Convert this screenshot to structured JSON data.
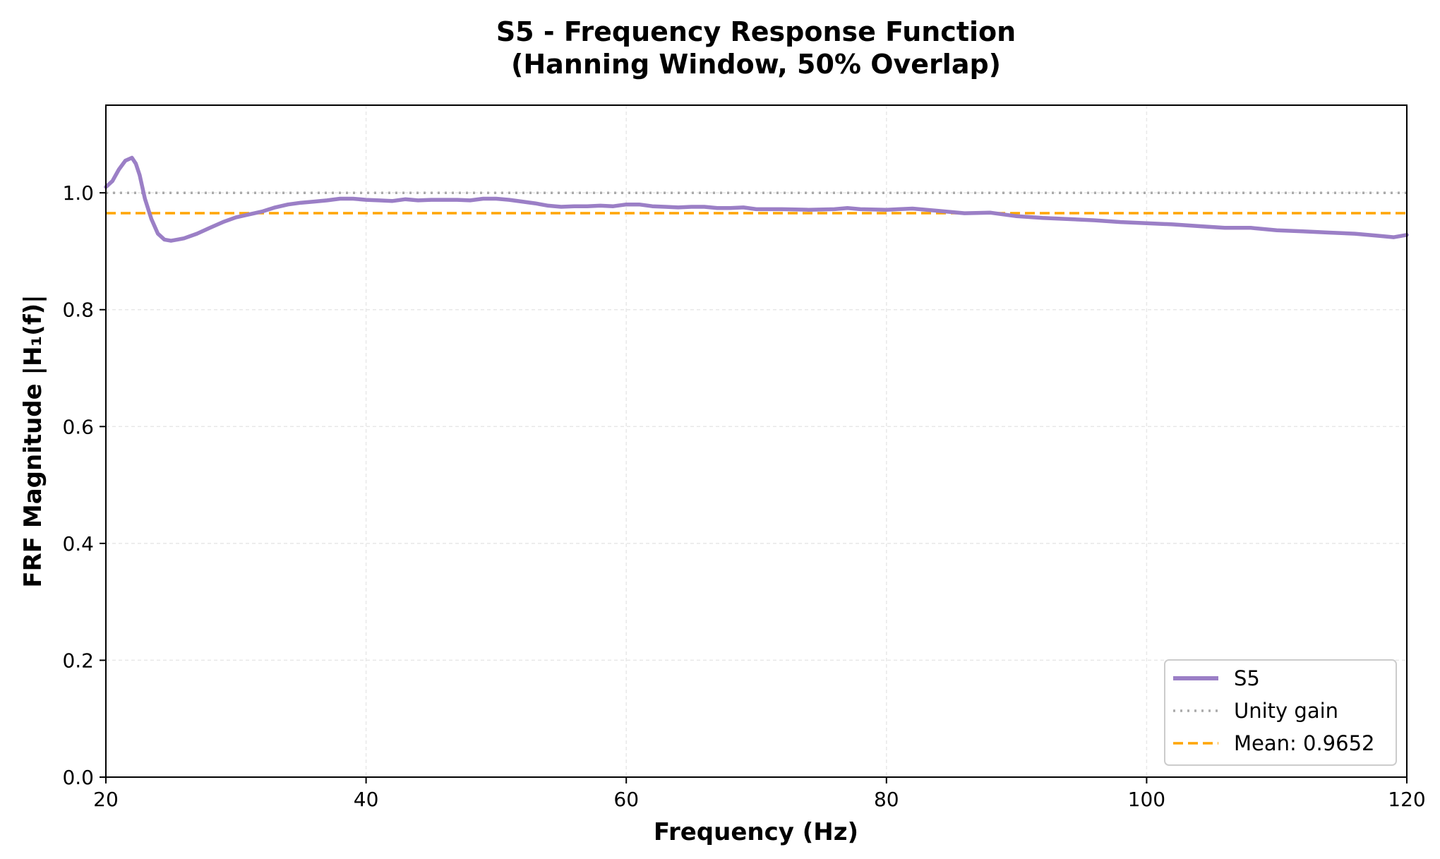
{
  "chart_data": {
    "type": "line",
    "title": "S5 - Frequency Response Function",
    "subtitle": "(Hanning Window, 50% Overlap)",
    "xlabel": "Frequency (Hz)",
    "ylabel": "FRF Magnitude |H₁(f)|",
    "xlim": [
      20,
      120
    ],
    "ylim": [
      0,
      1.15
    ],
    "xticks": [
      20,
      40,
      60,
      80,
      100,
      120
    ],
    "xtick_labels": [
      "20",
      "40",
      "60",
      "80",
      "100",
      "120"
    ],
    "yticks": [
      0,
      0.2,
      0.4,
      0.6,
      0.8,
      1.0
    ],
    "ytick_labels": [
      "0.0",
      "0.2",
      "0.4",
      "0.6",
      "0.8",
      "1.0"
    ],
    "grid": true,
    "legend_position": "lower-right",
    "series": [
      {
        "name": "S5",
        "color": "#9b7fc6",
        "style": "solid",
        "x": [
          20,
          20.5,
          21,
          21.5,
          22,
          22.3,
          22.6,
          23,
          23.5,
          24,
          24.5,
          25,
          25.5,
          26,
          27,
          28,
          29,
          30,
          31,
          32,
          33,
          34,
          35,
          36,
          37,
          38,
          39,
          40,
          41,
          42,
          43,
          44,
          45,
          46,
          47,
          48,
          49,
          50,
          51,
          52,
          53,
          54,
          55,
          56,
          57,
          58,
          59,
          60,
          61,
          62,
          63,
          64,
          65,
          66,
          67,
          68,
          69,
          70,
          72,
          74,
          76,
          77,
          78,
          80,
          82,
          84,
          86,
          88,
          90,
          92,
          94,
          96,
          98,
          100,
          102,
          104,
          106,
          108,
          110,
          112,
          114,
          116,
          118,
          119,
          120
        ],
        "values": [
          1.01,
          1.02,
          1.04,
          1.055,
          1.06,
          1.05,
          1.03,
          0.99,
          0.955,
          0.93,
          0.92,
          0.918,
          0.92,
          0.922,
          0.93,
          0.94,
          0.95,
          0.958,
          0.963,
          0.968,
          0.975,
          0.98,
          0.983,
          0.985,
          0.987,
          0.99,
          0.99,
          0.988,
          0.987,
          0.986,
          0.989,
          0.987,
          0.988,
          0.988,
          0.988,
          0.987,
          0.99,
          0.99,
          0.988,
          0.985,
          0.982,
          0.978,
          0.976,
          0.977,
          0.977,
          0.978,
          0.977,
          0.98,
          0.98,
          0.977,
          0.976,
          0.975,
          0.976,
          0.976,
          0.974,
          0.974,
          0.975,
          0.972,
          0.972,
          0.971,
          0.972,
          0.974,
          0.972,
          0.971,
          0.973,
          0.969,
          0.965,
          0.966,
          0.96,
          0.957,
          0.955,
          0.953,
          0.95,
          0.948,
          0.946,
          0.943,
          0.94,
          0.94,
          0.936,
          0.934,
          0.932,
          0.93,
          0.926,
          0.924,
          0.928
        ]
      },
      {
        "name": "Unity gain",
        "color": "#aaaaaa",
        "style": "dotted",
        "x": [
          20,
          120
        ],
        "values": [
          1.0,
          1.0
        ]
      },
      {
        "name": "Mean: 0.9652",
        "color": "#ffa500",
        "style": "dashed",
        "x": [
          20,
          120
        ],
        "values": [
          0.9652,
          0.9652
        ]
      }
    ]
  }
}
